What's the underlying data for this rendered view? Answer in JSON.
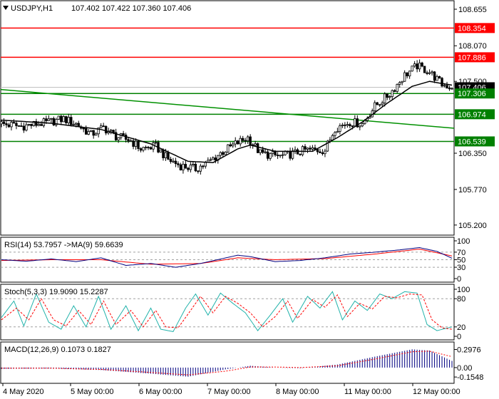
{
  "header": {
    "symbol": "USDJPY,H1",
    "ohlc": "107.402 107.422 107.360 107.406"
  },
  "colors": {
    "resistance": "#ff0000",
    "support": "#008000",
    "trend": "#009000",
    "candle": "#000000",
    "ma": "#000000",
    "rsi": "#000080",
    "rsi_ma": "#ff0000",
    "stoch_main": "#20b2aa",
    "stoch_signal": "#ff0000",
    "macd_hist": "#000080",
    "macd_signal": "#ff0000",
    "grid": "#c0c0c0"
  },
  "main_axis": {
    "ticks": [
      "108.655",
      "108.070",
      "107.500",
      "106.350",
      "105.770",
      "105.200"
    ],
    "tick_values": [
      108.655,
      108.07,
      107.5,
      106.35,
      105.77,
      105.2
    ],
    "ylim": [
      105.05,
      108.78
    ]
  },
  "levels": {
    "resistance_1": "108.354",
    "resistance_2": "107.886",
    "support_1": "107.306",
    "support_2": "106.974",
    "support_3": "106.539",
    "price": "107.406"
  },
  "level_values": {
    "resistance_1": 108.354,
    "resistance_2": 107.886,
    "support_1": 107.306,
    "support_2": 106.974,
    "support_3": 106.539,
    "price": 107.406
  },
  "trendline": {
    "start": 107.37,
    "end": 106.75
  },
  "x_axis": {
    "labels": [
      "4 May 2020",
      "5 May 00:00",
      "6 May 00:00",
      "7 May 00:00",
      "8 May 00:00",
      "11 May 00:00",
      "12 May 00:00"
    ]
  },
  "rsi": {
    "label": "RSI(14) 53.7957   ->MA(9) 59.6639",
    "ticks": [
      "100",
      "70",
      "50",
      "30",
      "0"
    ],
    "tick_values": [
      100,
      70,
      50,
      30,
      0
    ],
    "ylim": [
      0,
      100
    ]
  },
  "stoch": {
    "label": "Stoch(5,3,3) 19.9090 15.2287",
    "ticks": [
      "100",
      "80",
      "20",
      "0"
    ],
    "tick_values": [
      100,
      80,
      20,
      0
    ],
    "ylim": [
      0,
      100
    ]
  },
  "macd": {
    "label": "MACD(12,26,9) 0.1073 0.1827",
    "ticks": [
      "0.2976",
      "0.00",
      "-0.1548"
    ],
    "tick_values": [
      0.2976,
      0.0,
      -0.1548
    ],
    "ylim": [
      -0.2,
      0.35
    ]
  },
  "chart_data": {
    "type": "candlestick",
    "symbol": "USDJPY",
    "timeframe": "H1",
    "price_path": [
      [
        0,
        106.82
      ],
      [
        8,
        106.78
      ],
      [
        18,
        106.84
      ],
      [
        25,
        106.9
      ],
      [
        30,
        106.82
      ],
      [
        36,
        106.65
      ],
      [
        41,
        106.76
      ],
      [
        46,
        106.62
      ],
      [
        52,
        106.55
      ],
      [
        56,
        106.42
      ],
      [
        62,
        106.46
      ],
      [
        67,
        106.25
      ],
      [
        72,
        106.15
      ],
      [
        78,
        106.1
      ],
      [
        83,
        106.2
      ],
      [
        88,
        106.35
      ],
      [
        94,
        106.5
      ],
      [
        99,
        106.6
      ],
      [
        104,
        106.35
      ],
      [
        108,
        106.32
      ],
      [
        112,
        106.3
      ],
      [
        118,
        106.35
      ],
      [
        122,
        106.4
      ],
      [
        130,
        106.4
      ],
      [
        134,
        106.75
      ],
      [
        140,
        106.85
      ],
      [
        145,
        106.82
      ],
      [
        150,
        107.1
      ],
      [
        156,
        107.3
      ],
      [
        162,
        107.6
      ],
      [
        167,
        107.75
      ],
      [
        172,
        107.65
      ],
      [
        177,
        107.45
      ],
      [
        181,
        107.41
      ]
    ],
    "ma_path": [
      [
        0,
        106.88
      ],
      [
        20,
        106.83
      ],
      [
        40,
        106.73
      ],
      [
        60,
        106.5
      ],
      [
        75,
        106.22
      ],
      [
        85,
        106.2
      ],
      [
        95,
        106.42
      ],
      [
        100,
        106.48
      ],
      [
        110,
        106.38
      ],
      [
        125,
        106.38
      ],
      [
        135,
        106.6
      ],
      [
        145,
        106.85
      ],
      [
        155,
        107.15
      ],
      [
        165,
        107.42
      ],
      [
        172,
        107.5
      ],
      [
        181,
        107.44
      ]
    ],
    "rsi_path": [
      [
        0,
        50
      ],
      [
        10,
        46
      ],
      [
        20,
        52
      ],
      [
        30,
        45
      ],
      [
        40,
        55
      ],
      [
        50,
        35
      ],
      [
        60,
        40
      ],
      [
        70,
        30
      ],
      [
        80,
        40
      ],
      [
        95,
        62
      ],
      [
        100,
        58
      ],
      [
        110,
        45
      ],
      [
        120,
        48
      ],
      [
        130,
        55
      ],
      [
        140,
        65
      ],
      [
        150,
        70
      ],
      [
        160,
        76
      ],
      [
        168,
        82
      ],
      [
        175,
        72
      ],
      [
        181,
        54
      ]
    ],
    "rsi_ma_path": [
      [
        0,
        48
      ],
      [
        20,
        50
      ],
      [
        40,
        50
      ],
      [
        60,
        38
      ],
      [
        80,
        40
      ],
      [
        95,
        55
      ],
      [
        110,
        50
      ],
      [
        130,
        53
      ],
      [
        150,
        65
      ],
      [
        168,
        78
      ],
      [
        181,
        60
      ]
    ],
    "stoch_main_path": [
      [
        0,
        40
      ],
      [
        5,
        75
      ],
      [
        9,
        22
      ],
      [
        14,
        90
      ],
      [
        19,
        30
      ],
      [
        24,
        15
      ],
      [
        29,
        65
      ],
      [
        34,
        20
      ],
      [
        39,
        85
      ],
      [
        44,
        15
      ],
      [
        50,
        65
      ],
      [
        55,
        12
      ],
      [
        60,
        60
      ],
      [
        64,
        15
      ],
      [
        69,
        10
      ],
      [
        74,
        60
      ],
      [
        78,
        90
      ],
      [
        83,
        45
      ],
      [
        88,
        92
      ],
      [
        93,
        70
      ],
      [
        98,
        50
      ],
      [
        103,
        12
      ],
      [
        108,
        45
      ],
      [
        113,
        80
      ],
      [
        117,
        30
      ],
      [
        123,
        85
      ],
      [
        128,
        60
      ],
      [
        133,
        95
      ],
      [
        137,
        35
      ],
      [
        142,
        75
      ],
      [
        147,
        55
      ],
      [
        152,
        90
      ],
      [
        157,
        80
      ],
      [
        162,
        95
      ],
      [
        167,
        92
      ],
      [
        171,
        25
      ],
      [
        175,
        12
      ],
      [
        181,
        20
      ]
    ],
    "stoch_signal_path": [
      [
        0,
        35
      ],
      [
        6,
        60
      ],
      [
        11,
        35
      ],
      [
        16,
        80
      ],
      [
        21,
        35
      ],
      [
        26,
        22
      ],
      [
        31,
        55
      ],
      [
        36,
        25
      ],
      [
        41,
        75
      ],
      [
        46,
        25
      ],
      [
        52,
        55
      ],
      [
        57,
        20
      ],
      [
        62,
        55
      ],
      [
        66,
        20
      ],
      [
        71,
        18
      ],
      [
        76,
        55
      ],
      [
        80,
        85
      ],
      [
        85,
        50
      ],
      [
        90,
        85
      ],
      [
        95,
        70
      ],
      [
        100,
        50
      ],
      [
        105,
        20
      ],
      [
        110,
        42
      ],
      [
        115,
        75
      ],
      [
        119,
        38
      ],
      [
        125,
        78
      ],
      [
        130,
        62
      ],
      [
        135,
        88
      ],
      [
        139,
        42
      ],
      [
        144,
        70
      ],
      [
        149,
        58
      ],
      [
        154,
        85
      ],
      [
        159,
        82
      ],
      [
        164,
        90
      ],
      [
        169,
        88
      ],
      [
        173,
        35
      ],
      [
        177,
        18
      ],
      [
        181,
        15
      ]
    ],
    "macd_path": [
      [
        0,
        -0.02
      ],
      [
        20,
        -0.015
      ],
      [
        40,
        -0.04
      ],
      [
        60,
        -0.1
      ],
      [
        75,
        -0.15
      ],
      [
        90,
        -0.03
      ],
      [
        100,
        0.03
      ],
      [
        110,
        0.0
      ],
      [
        120,
        -0.01
      ],
      [
        135,
        0.05
      ],
      [
        150,
        0.18
      ],
      [
        165,
        0.3
      ],
      [
        172,
        0.28
      ],
      [
        181,
        0.11
      ]
    ],
    "macd_signal_path": [
      [
        0,
        -0.01
      ],
      [
        20,
        -0.01
      ],
      [
        40,
        -0.03
      ],
      [
        60,
        -0.08
      ],
      [
        75,
        -0.12
      ],
      [
        90,
        -0.06
      ],
      [
        100,
        0.01
      ],
      [
        110,
        0.01
      ],
      [
        120,
        0.0
      ],
      [
        135,
        0.03
      ],
      [
        150,
        0.14
      ],
      [
        165,
        0.26
      ],
      [
        172,
        0.27
      ],
      [
        181,
        0.18
      ]
    ]
  }
}
